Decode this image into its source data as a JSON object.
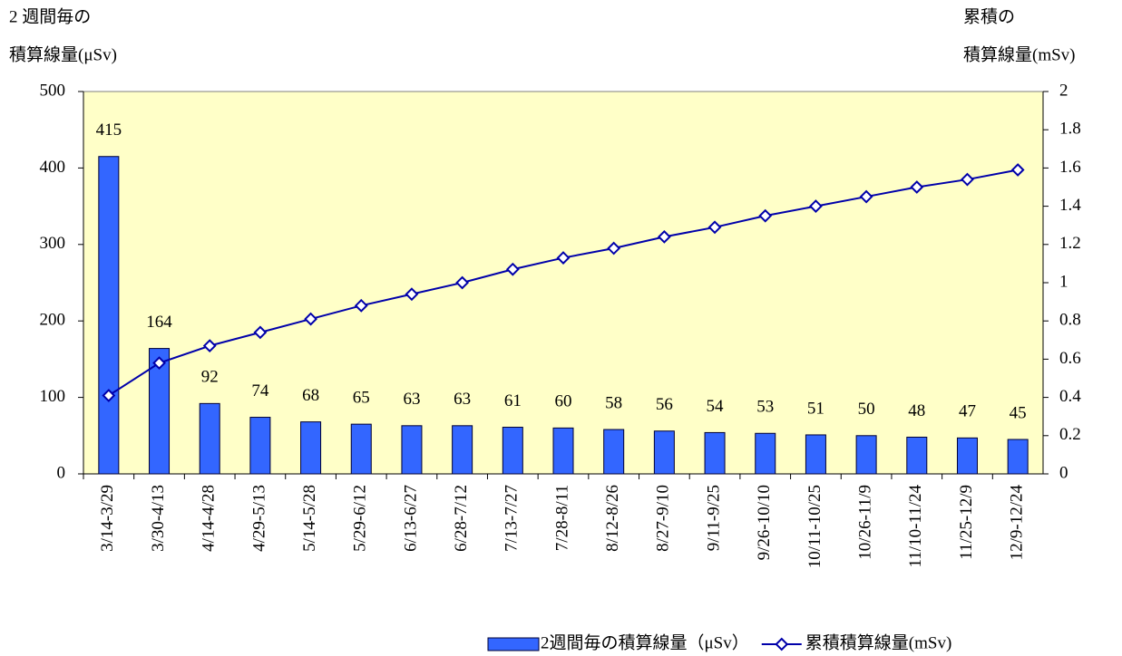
{
  "chart_data": {
    "type": "bar-line",
    "ylabel": [
      "2 週間毎の",
      "積算線量(μSv)"
    ],
    "y2label": [
      "累積の",
      "積算線量(mSv)"
    ],
    "categories": [
      "3/14-3/29",
      "3/30-4/13",
      "4/14-4/28",
      "4/29-5/13",
      "5/14-5/28",
      "5/29-6/12",
      "6/13-6/27",
      "6/28-7/12",
      "7/13-7/27",
      "7/28-8/11",
      "8/12-8/26",
      "8/27-9/10",
      "9/11-9/25",
      "9/26-10/10",
      "10/11-10/25",
      "10/26-11/9",
      "11/10-11/24",
      "11/25-12/9",
      "12/9-12/24"
    ],
    "series": [
      {
        "name": "2週間毎の積算線量（μSv）",
        "type": "bar",
        "color": "#3366ff",
        "axis": "y",
        "values": [
          415,
          164,
          92,
          74,
          68,
          65,
          63,
          63,
          61,
          60,
          58,
          56,
          54,
          53,
          51,
          50,
          48,
          47,
          45
        ]
      },
      {
        "name": "累積積算線量(mSv)",
        "type": "line",
        "color": "#0000aa",
        "axis": "y2",
        "values": [
          0.41,
          0.58,
          0.67,
          0.74,
          0.81,
          0.88,
          0.94,
          1.0,
          1.07,
          1.13,
          1.18,
          1.24,
          1.29,
          1.35,
          1.4,
          1.45,
          1.5,
          1.54,
          1.59
        ]
      }
    ],
    "ylim": [
      0,
      500
    ],
    "yticks": [
      0,
      100,
      200,
      300,
      400,
      500
    ],
    "y2lim": [
      0,
      2
    ],
    "y2ticks": [
      0,
      0.2,
      0.4,
      0.6,
      0.8,
      1,
      1.2,
      1.4,
      1.6,
      1.8,
      2
    ],
    "plot_background": "#ffffc8",
    "legend": "bottom-right"
  }
}
